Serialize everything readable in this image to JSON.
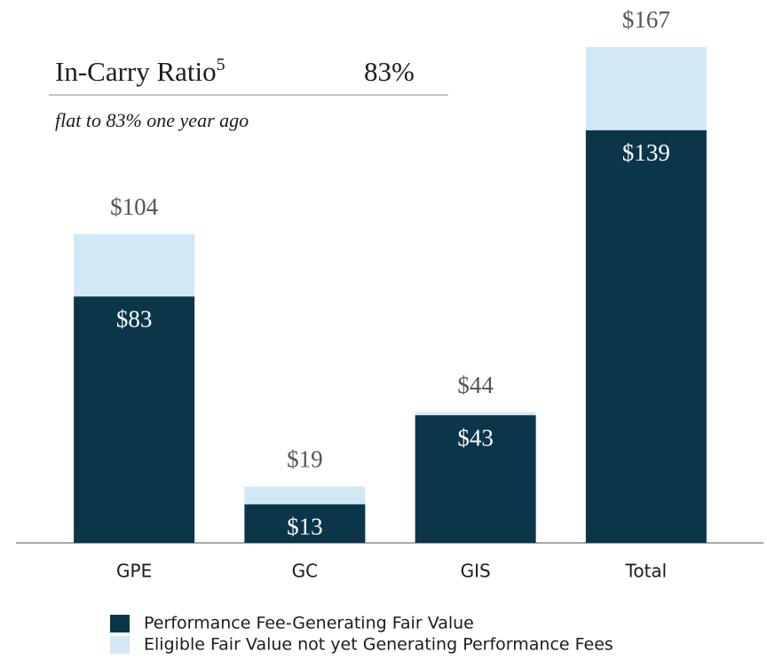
{
  "chart_data": {
    "type": "stacked_bar",
    "title": "In-Carry Ratio",
    "title_superscript": "5",
    "ratio": "83%",
    "subtitle": "flat to 83% one year ago",
    "categories": [
      "GPE",
      "GC",
      "GIS",
      "Total"
    ],
    "series": [
      {
        "name": "Performance Fee-Generating Fair Value",
        "color": "#0b3549",
        "values": [
          83,
          13,
          43,
          139
        ],
        "value_labels": [
          "$83",
          "$13",
          "$43",
          "$139"
        ]
      },
      {
        "name": "Eligible Fair Value not yet Generating Performance Fees",
        "color": "#d3e8f6",
        "values": [
          21,
          6,
          1,
          28
        ]
      }
    ],
    "totals": {
      "values": [
        104,
        19,
        44,
        167
      ],
      "value_labels": [
        "$104",
        "$19",
        "$44",
        "$167"
      ]
    }
  }
}
